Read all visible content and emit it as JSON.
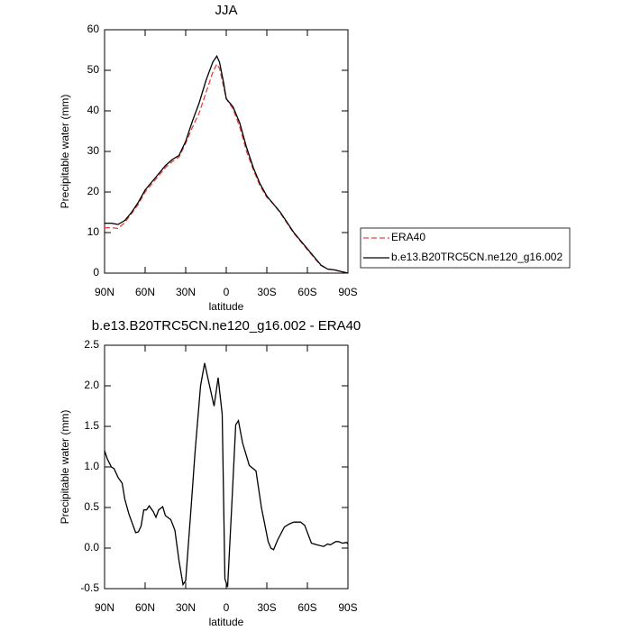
{
  "chart_data": [
    {
      "type": "line",
      "title": "JJA",
      "xlabel": "latitude",
      "ylabel": "Precipitable water (mm)",
      "x": [
        90,
        85,
        80,
        75,
        70,
        65,
        60,
        55,
        50,
        45,
        40,
        35,
        30,
        25,
        20,
        15,
        10,
        7,
        5,
        2,
        0,
        -5,
        -10,
        -15,
        -20,
        -25,
        -30,
        -35,
        -40,
        -45,
        -50,
        -55,
        -60,
        -65,
        -70,
        -75,
        -80,
        -85,
        -90
      ],
      "series": [
        {
          "name": "ERA40",
          "color": "#e8403a",
          "line_style": "dashed",
          "values": [
            11.2,
            11.2,
            11,
            12.5,
            14.7,
            17,
            20,
            22,
            24,
            26,
            27.5,
            28.6,
            32,
            36,
            39.5,
            44.5,
            49.5,
            51.5,
            50.5,
            46,
            43,
            40.5,
            36,
            30,
            25.5,
            21.5,
            18.7,
            17,
            14.8,
            12.3,
            9.8,
            7.8,
            5.8,
            3.8,
            1.9,
            1,
            0.8,
            0.4,
            0
          ]
        },
        {
          "name": "b.e13.B20TRC5CN.ne120_g16.002",
          "color": "#000000",
          "line_style": "solid",
          "values": [
            12.3,
            12.3,
            12.0,
            13,
            15,
            17.5,
            20.5,
            22.5,
            24.5,
            26.5,
            28,
            29,
            32.5,
            37.5,
            42,
            47.5,
            52,
            53.5,
            52,
            47,
            43,
            41,
            37,
            31,
            26,
            22,
            19,
            17,
            15,
            12.5,
            10,
            8,
            6,
            4,
            2,
            1,
            0.8,
            0.4,
            0
          ]
        }
      ],
      "xlim": [
        90,
        -90
      ],
      "xticks": [
        {
          "value": 90,
          "label": "90N"
        },
        {
          "value": 60,
          "label": "60N"
        },
        {
          "value": 30,
          "label": "30N"
        },
        0,
        {
          "value": -30,
          "label": "30S"
        },
        {
          "value": -60,
          "label": "60S"
        },
        {
          "value": -90,
          "label": "90S"
        }
      ],
      "ylim": [
        0,
        60
      ],
      "yticks": [
        0,
        10,
        20,
        30,
        40,
        50,
        60
      ],
      "legend": "right"
    },
    {
      "type": "line",
      "title": "b.e13.B20TRC5CN.ne120_g16.002 - ERA40",
      "xlabel": "latitude",
      "ylabel": "Precipitable water (mm)",
      "x": [
        90,
        88,
        85,
        83,
        80,
        77,
        75,
        72,
        67,
        65,
        63,
        61,
        59,
        57,
        54,
        52,
        50,
        47,
        45,
        41,
        38,
        35,
        32,
        30,
        26,
        23,
        19,
        16,
        13,
        9,
        6,
        3,
        1,
        -1,
        -4,
        -7,
        -9,
        -12,
        -17,
        -22,
        -26,
        -31,
        -33,
        -35,
        -38,
        -43,
        -47,
        -50,
        -55,
        -58,
        -63,
        -67,
        -72,
        -75,
        -77,
        -81,
        -83,
        -86,
        -89,
        -90
      ],
      "values": [
        1.2,
        1.1,
        1.0,
        0.98,
        0.87,
        0.8,
        0.6,
        0.42,
        0.19,
        0.2,
        0.27,
        0.47,
        0.47,
        0.52,
        0.45,
        0.38,
        0.47,
        0.51,
        0.4,
        0.35,
        0.22,
        -0.15,
        -0.45,
        -0.4,
        0.5,
        1.2,
        2.0,
        2.28,
        2.05,
        1.75,
        2.1,
        1.65,
        -0.38,
        -0.48,
        0.5,
        1.52,
        1.57,
        1.3,
        1.02,
        0.95,
        0.5,
        0.08,
        0.0,
        -0.02,
        0.1,
        0.26,
        0.3,
        0.32,
        0.32,
        0.28,
        0.06,
        0.04,
        0.02,
        0.05,
        0.04,
        0.08,
        0.08,
        0.06,
        0.07,
        0.05
      ],
      "color": "#000000",
      "xlim": [
        90,
        -90
      ],
      "xticks": [
        {
          "value": 90,
          "label": "90N"
        },
        {
          "value": 60,
          "label": "60N"
        },
        {
          "value": 30,
          "label": "30N"
        },
        0,
        {
          "value": -30,
          "label": "30S"
        },
        {
          "value": -60,
          "label": "60S"
        },
        {
          "value": -90,
          "label": "90S"
        }
      ],
      "ylim": [
        -0.5,
        2.5
      ],
      "yticks": [
        -0.5,
        {
          "value": 0,
          "label": "0.0"
        },
        0.5,
        {
          "value": 1,
          "label": "1.0"
        },
        1.5,
        {
          "value": 2,
          "label": "2.0"
        },
        2.5
      ]
    }
  ]
}
